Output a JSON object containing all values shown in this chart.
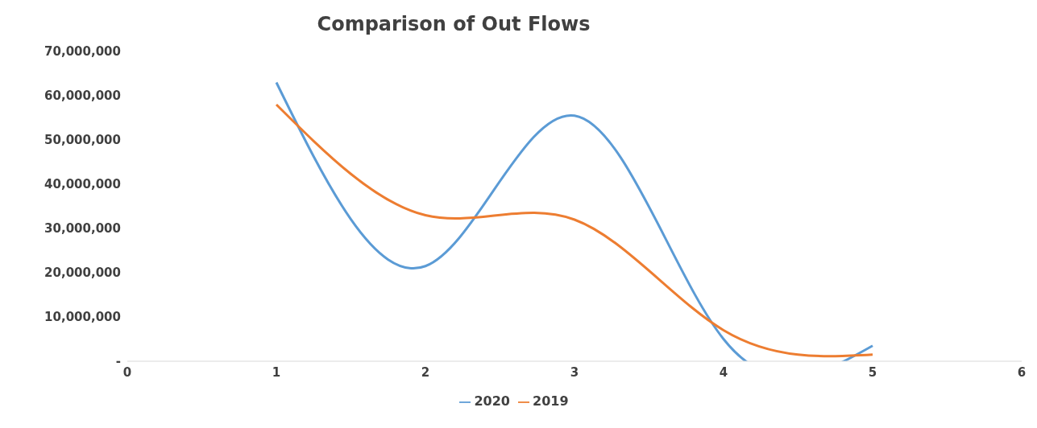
{
  "chart_data": {
    "type": "line",
    "title": "Comparison of Out Flows",
    "x": [
      1,
      2,
      3,
      4,
      5
    ],
    "series": [
      {
        "name": "2020",
        "color": "#5b9bd5",
        "values": [
          63000000,
          21500000,
          55500000,
          5000000,
          3500000
        ]
      },
      {
        "name": "2019",
        "color": "#ed7d31",
        "values": [
          58000000,
          33000000,
          32000000,
          7000000,
          1500000
        ]
      }
    ],
    "xlim": [
      0,
      6
    ],
    "xticks": [
      0,
      1,
      2,
      3,
      4,
      5,
      6
    ],
    "ylim": [
      0,
      70000000
    ],
    "yticks": [
      {
        "value": 0,
        "label": "-"
      },
      {
        "value": 10000000,
        "label": "10,000,000"
      },
      {
        "value": 20000000,
        "label": "20,000,000"
      },
      {
        "value": 30000000,
        "label": "30,000,000"
      },
      {
        "value": 40000000,
        "label": "40,000,000"
      },
      {
        "value": 50000000,
        "label": "50,000,000"
      },
      {
        "value": 60000000,
        "label": "60,000,000"
      },
      {
        "value": 70000000,
        "label": "70,000,000"
      }
    ],
    "grid": false,
    "legend": "bottom",
    "marker": "none",
    "line_style": "solid"
  }
}
